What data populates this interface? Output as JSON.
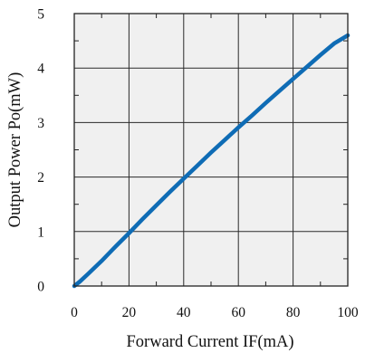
{
  "chart_data": {
    "type": "line",
    "xlabel": "Forward Current IF(mA)",
    "ylabel": "Output Power Po(mW)",
    "xlim": [
      0,
      100
    ],
    "ylim": [
      0,
      5
    ],
    "x_ticks": [
      0,
      20,
      40,
      60,
      80,
      100
    ],
    "y_ticks": [
      0,
      1,
      2,
      3,
      4,
      5
    ],
    "x_tick_labels": [
      "0",
      "20",
      "40",
      "60",
      "80",
      "100"
    ],
    "y_tick_labels": [
      "0",
      "1",
      "2",
      "3",
      "4",
      "5"
    ],
    "grid": true,
    "plot_background": "#f0f0f0",
    "line_color": "#0f6cb5",
    "series": [
      {
        "x": [
          0,
          2,
          5,
          10,
          15,
          20,
          25,
          30,
          35,
          40,
          45,
          50,
          55,
          60,
          65,
          70,
          75,
          80,
          85,
          90,
          95,
          100
        ],
        "y": [
          0.0,
          0.08,
          0.22,
          0.46,
          0.72,
          0.97,
          1.23,
          1.48,
          1.73,
          1.97,
          2.21,
          2.45,
          2.68,
          2.91,
          3.13,
          3.36,
          3.58,
          3.8,
          4.02,
          4.24,
          4.45,
          4.6
        ]
      }
    ]
  }
}
